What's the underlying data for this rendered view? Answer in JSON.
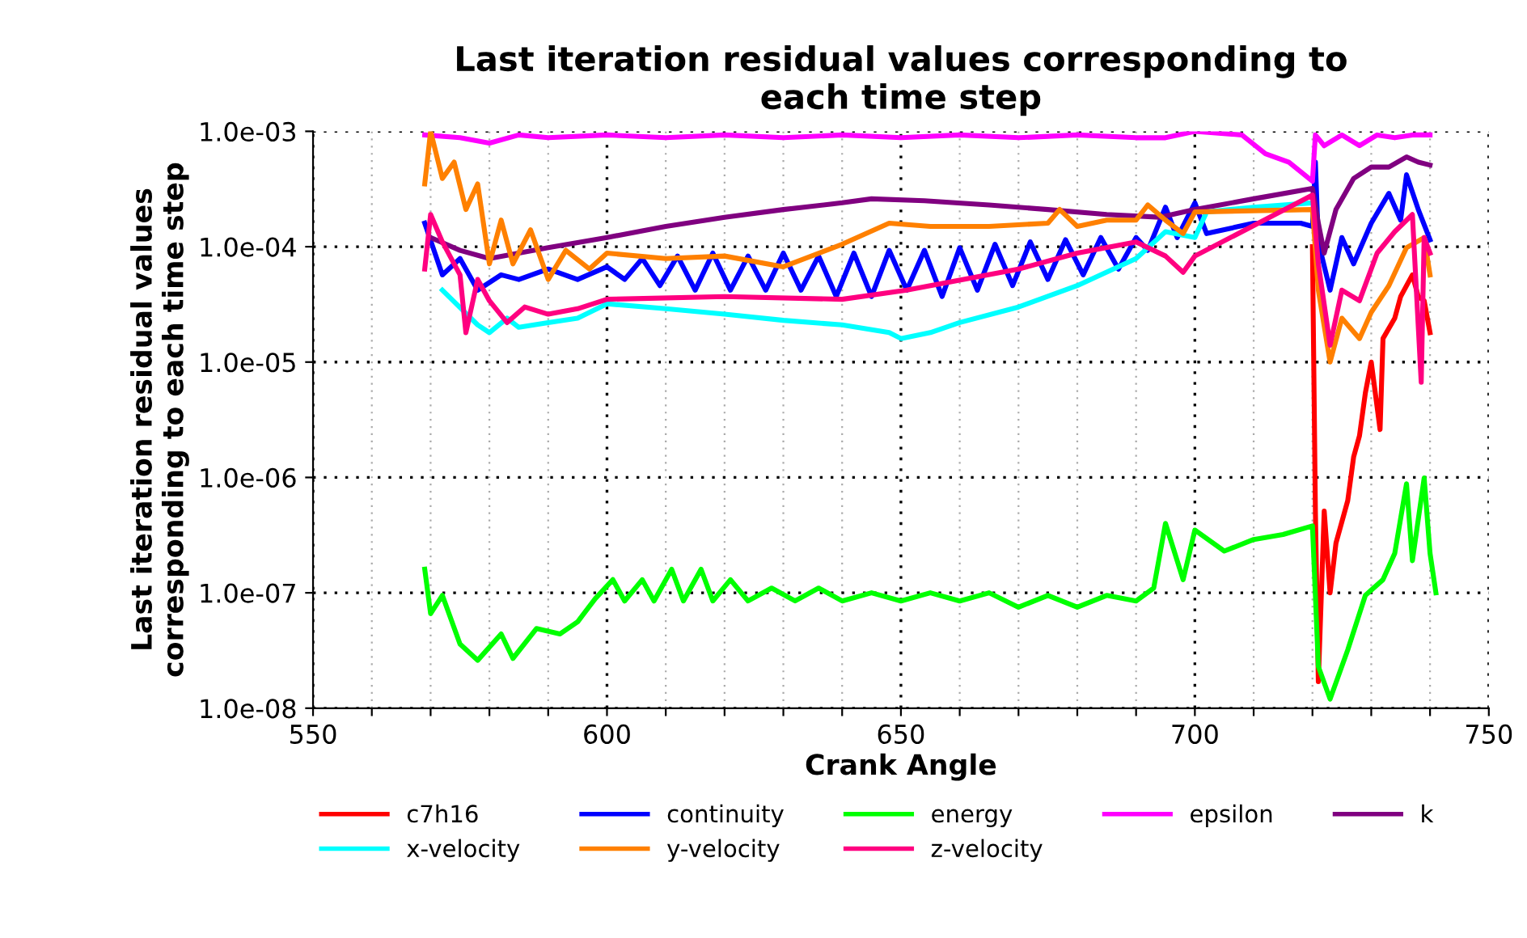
{
  "chart_data": {
    "type": "line",
    "title": "Last iteration residual values corresponding to\neach time step",
    "xlabel": "Crank Angle",
    "ylabel": "Last iteration residual values\ncorresponding to each time step",
    "log": "y",
    "grid": true,
    "legend": "bottom",
    "marker": "none",
    "line_style": "solid",
    "xlim": [
      550,
      750
    ],
    "xticks": [
      550,
      {
        "value": 560,
        "label": null
      },
      {
        "value": 570,
        "label": null
      },
      {
        "value": 580,
        "label": null
      },
      {
        "value": 590,
        "label": null
      },
      600,
      {
        "value": 610,
        "label": null
      },
      {
        "value": 620,
        "label": null
      },
      {
        "value": 630,
        "label": null
      },
      {
        "value": 640,
        "label": null
      },
      650,
      {
        "value": 660,
        "label": null
      },
      {
        "value": 670,
        "label": null
      },
      {
        "value": 680,
        "label": null
      },
      {
        "value": 690,
        "label": null
      },
      700,
      {
        "value": 710,
        "label": null
      },
      {
        "value": 720,
        "label": null
      },
      {
        "value": 730,
        "label": null
      },
      {
        "value": 740,
        "label": null
      },
      750
    ],
    "ylim": [
      1e-08,
      0.001
    ],
    "yticks": [
      {
        "value": 1e-08,
        "label": "1.0e-08"
      },
      {
        "value": 1e-07,
        "label": "1.0e-07"
      },
      {
        "value": 1e-06,
        "label": "1.0e-06"
      },
      {
        "value": 1e-05,
        "label": "1.0e-05"
      },
      {
        "value": 0.0001,
        "label": "1.0e-04"
      },
      {
        "value": 0.001,
        "label": "1.0e-03"
      }
    ],
    "series": [
      {
        "name": "c7h16",
        "color": "#ff0000",
        "x": [
          720,
          720.5,
          721,
          722,
          723,
          724,
          726,
          727,
          728,
          729,
          730,
          731.5,
          732,
          734,
          735,
          737,
          738,
          739,
          740
        ],
        "values": [
          0.0001,
          5.1e-07,
          1.7e-08,
          5.1e-07,
          1e-07,
          2.7e-07,
          6.3e-07,
          1.5e-06,
          2.3e-06,
          5.4e-06,
          1e-05,
          2.6e-06,
          1.6e-05,
          2.4e-05,
          3.7e-05,
          5.7e-05,
          3.7e-05,
          3.4e-05,
          1.8e-05
        ]
      },
      {
        "name": "continuity",
        "color": "#0000ff",
        "x": [
          569,
          572,
          575,
          578,
          582,
          585,
          590,
          595,
          600,
          603,
          606,
          609,
          612,
          615,
          618,
          621,
          624,
          627,
          630,
          633,
          636,
          639,
          642,
          645,
          648,
          651,
          654,
          657,
          660,
          663,
          666,
          669,
          672,
          675,
          678,
          681,
          684,
          687,
          690,
          692,
          695,
          697,
          700,
          702,
          710,
          718,
          720,
          720.5,
          721,
          723,
          725,
          727,
          730,
          733,
          735,
          736,
          738,
          740
        ],
        "values": [
          0.00016,
          5.7e-05,
          7.9e-05,
          4.2e-05,
          5.7e-05,
          5.2e-05,
          6.4e-05,
          5.2e-05,
          6.7e-05,
          5.2e-05,
          7.9e-05,
          4.6e-05,
          8.3e-05,
          4.2e-05,
          8.8e-05,
          4.2e-05,
          8.3e-05,
          4.2e-05,
          8.8e-05,
          4.2e-05,
          8.3e-05,
          3.7e-05,
          8.8e-05,
          3.7e-05,
          9.3e-05,
          4.2e-05,
          9.3e-05,
          3.7e-05,
          9.8e-05,
          4.2e-05,
          0.000105,
          4.6e-05,
          0.00011,
          5.2e-05,
          0.000115,
          5.7e-05,
          0.00012,
          6.4e-05,
          0.00012,
          9.3e-05,
          0.00022,
          0.00012,
          0.00024,
          0.00013,
          0.00016,
          0.00016,
          0.00015,
          0.00054,
          0.00011,
          4.2e-05,
          0.00012,
          7.1e-05,
          0.00016,
          0.00029,
          0.00017,
          0.00042,
          0.00021,
          0.000115
        ]
      },
      {
        "name": "energy",
        "color": "#00ff00",
        "x": [
          569,
          570,
          572,
          575,
          578,
          582,
          584,
          588,
          592,
          595,
          598,
          601,
          603,
          606,
          608,
          611,
          613,
          616,
          618,
          621,
          624,
          628,
          632,
          636,
          640,
          645,
          650,
          655,
          660,
          665,
          670,
          675,
          680,
          685,
          690,
          693,
          695,
          698,
          700,
          705,
          710,
          715,
          720,
          720.5,
          721,
          723,
          726,
          729,
          732,
          734,
          736,
          737,
          739,
          740,
          741
        ],
        "values": [
          1.6e-07,
          6.6e-08,
          9.5e-08,
          3.6e-08,
          2.6e-08,
          4.4e-08,
          2.7e-08,
          4.9e-08,
          4.4e-08,
          5.6e-08,
          8.9e-08,
          1.3e-07,
          8.5e-08,
          1.3e-07,
          8.5e-08,
          1.6e-07,
          8.5e-08,
          1.6e-07,
          8.5e-08,
          1.3e-07,
          8.5e-08,
          1.1e-07,
          8.5e-08,
          1.1e-07,
          8.5e-08,
          1e-07,
          8.5e-08,
          1e-07,
          8.5e-08,
          1e-07,
          7.5e-08,
          9.5e-08,
          7.5e-08,
          9.5e-08,
          8.5e-08,
          1.1e-07,
          4e-07,
          1.3e-07,
          3.5e-07,
          2.3e-07,
          2.9e-07,
          3.2e-07,
          3.8e-07,
          9.5e-08,
          2.3e-08,
          1.2e-08,
          3.2e-08,
          9.5e-08,
          1.3e-07,
          2.2e-07,
          8.8e-07,
          1.9e-07,
          9.9e-07,
          2.2e-07,
          1e-07
        ]
      },
      {
        "name": "epsilon",
        "color": "#ff00ff",
        "x": [
          569,
          575,
          580,
          585,
          590,
          600,
          610,
          620,
          630,
          640,
          650,
          660,
          670,
          680,
          690,
          695,
          700,
          708,
          712,
          716,
          720,
          720.5,
          722,
          725,
          728,
          731,
          734,
          737,
          740
        ],
        "values": [
          0.00093,
          0.00088,
          0.00079,
          0.00093,
          0.00088,
          0.00093,
          0.00088,
          0.00093,
          0.00088,
          0.00093,
          0.00088,
          0.00093,
          0.00088,
          0.00093,
          0.00088,
          0.00088,
          0.001,
          0.00093,
          0.00064,
          0.00054,
          0.00037,
          0.00093,
          0.00075,
          0.00093,
          0.00075,
          0.00093,
          0.00088,
          0.00093,
          0.00093
        ]
      },
      {
        "name": "k",
        "color": "#800080",
        "x": [
          570,
          575,
          580,
          590,
          600,
          610,
          620,
          630,
          640,
          645,
          654,
          665,
          675,
          685,
          694,
          700,
          710,
          720,
          721,
          722,
          724,
          727,
          730,
          733,
          736,
          738,
          740
        ],
        "values": [
          0.00012,
          9.3e-05,
          7.9e-05,
          9.8e-05,
          0.00012,
          0.00015,
          0.00018,
          0.00021,
          0.00024,
          0.00026,
          0.00025,
          0.00023,
          0.00021,
          0.00019,
          0.00018,
          0.00021,
          0.00026,
          0.00032,
          0.00016,
          8.8e-05,
          0.00021,
          0.00039,
          0.00049,
          0.00049,
          0.0006,
          0.00054,
          0.00051
        ]
      },
      {
        "name": "x-velocity",
        "color": "#00ffff",
        "x": [
          572,
          578,
          580,
          583,
          585,
          590,
          595,
          600,
          610,
          620,
          630,
          640,
          648,
          650,
          655,
          660,
          670,
          680,
          690,
          695,
          700,
          702,
          710,
          720
        ],
        "values": [
          4.2e-05,
          2.1e-05,
          1.8e-05,
          2.4e-05,
          2e-05,
          2.2e-05,
          2.4e-05,
          3.2e-05,
          2.9e-05,
          2.6e-05,
          2.3e-05,
          2.1e-05,
          1.8e-05,
          1.6e-05,
          1.8e-05,
          2.2e-05,
          3e-05,
          4.6e-05,
          7.9e-05,
          0.000135,
          0.00012,
          0.0002,
          0.00022,
          0.00024
        ]
      },
      {
        "name": "y-velocity",
        "color": "#ff8000",
        "x": [
          569,
          570,
          572,
          574,
          576,
          578,
          580,
          582,
          584,
          587,
          590,
          593,
          597,
          600,
          610,
          620,
          630,
          640,
          648,
          655,
          665,
          675,
          677,
          680,
          685,
          690,
          692,
          695,
          698,
          700,
          720,
          721,
          723,
          725,
          728,
          730,
          733,
          736,
          739,
          740
        ],
        "values": [
          0.00035,
          0.001,
          0.00039,
          0.00054,
          0.00021,
          0.00035,
          7.1e-05,
          0.00017,
          7.1e-05,
          0.00014,
          5.2e-05,
          9.3e-05,
          6.4e-05,
          8.8e-05,
          7.9e-05,
          8.3e-05,
          6.7e-05,
          0.000105,
          0.00016,
          0.00015,
          0.00015,
          0.00016,
          0.00021,
          0.00015,
          0.00017,
          0.00017,
          0.00023,
          0.00017,
          0.00013,
          0.0002,
          0.00021,
          4.2e-05,
          1e-05,
          2.4e-05,
          1.6e-05,
          2.7e-05,
          4.6e-05,
          9.8e-05,
          0.00012,
          5.7e-05
        ]
      },
      {
        "name": "z-velocity",
        "color": "#ff0080",
        "x": [
          569,
          570,
          572,
          575,
          576,
          578,
          580,
          583,
          586,
          590,
          595,
          600,
          620,
          640,
          651,
          670,
          680,
          690,
          695,
          698,
          700,
          720,
          721,
          723,
          725,
          728,
          731,
          734,
          737,
          738.5,
          739,
          740
        ],
        "values": [
          6.4e-05,
          0.00019,
          0.00011,
          5.7e-05,
          1.8e-05,
          5.2e-05,
          3.4e-05,
          2.2e-05,
          3e-05,
          2.6e-05,
          2.9e-05,
          3.5e-05,
          3.7e-05,
          3.5e-05,
          4.2e-05,
          6.4e-05,
          8.8e-05,
          0.00011,
          8.3e-05,
          6e-05,
          8.3e-05,
          0.00028,
          7.1e-05,
          1.4e-05,
          4.2e-05,
          3.4e-05,
          8.8e-05,
          0.000135,
          0.00019,
          6.7e-06,
          0.00012,
          8.8e-05
        ]
      }
    ]
  }
}
